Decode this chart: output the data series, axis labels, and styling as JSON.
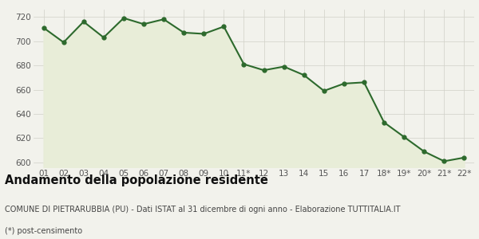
{
  "x_labels": [
    "01",
    "02",
    "03",
    "04",
    "05",
    "06",
    "07",
    "08",
    "09",
    "10",
    "11*",
    "12",
    "13",
    "14",
    "15",
    "16",
    "17",
    "18*",
    "19*",
    "20*",
    "21*",
    "22*"
  ],
  "y_values": [
    711,
    699,
    716,
    703,
    719,
    714,
    718,
    707,
    706,
    712,
    681,
    676,
    679,
    672,
    659,
    665,
    666,
    633,
    621,
    609,
    601,
    604
  ],
  "line_color": "#2d6a2d",
  "fill_color": "#e8edd8",
  "marker": "o",
  "marker_size": 3.5,
  "line_width": 1.5,
  "ylim": [
    596,
    726
  ],
  "yticks": [
    600,
    620,
    640,
    660,
    680,
    700,
    720
  ],
  "grid_color": "#d0d0c8",
  "bg_color": "#f2f2ec",
  "title": "Andamento della popolazione residente",
  "subtitle": "COMUNE DI PIETRARUBBIA (PU) - Dati ISTAT al 31 dicembre di ogni anno - Elaborazione TUTTITALIA.IT",
  "footnote": "(*) post-censimento",
  "title_fontsize": 10.5,
  "subtitle_fontsize": 7.0,
  "footnote_fontsize": 7.0,
  "tick_fontsize": 7.5
}
